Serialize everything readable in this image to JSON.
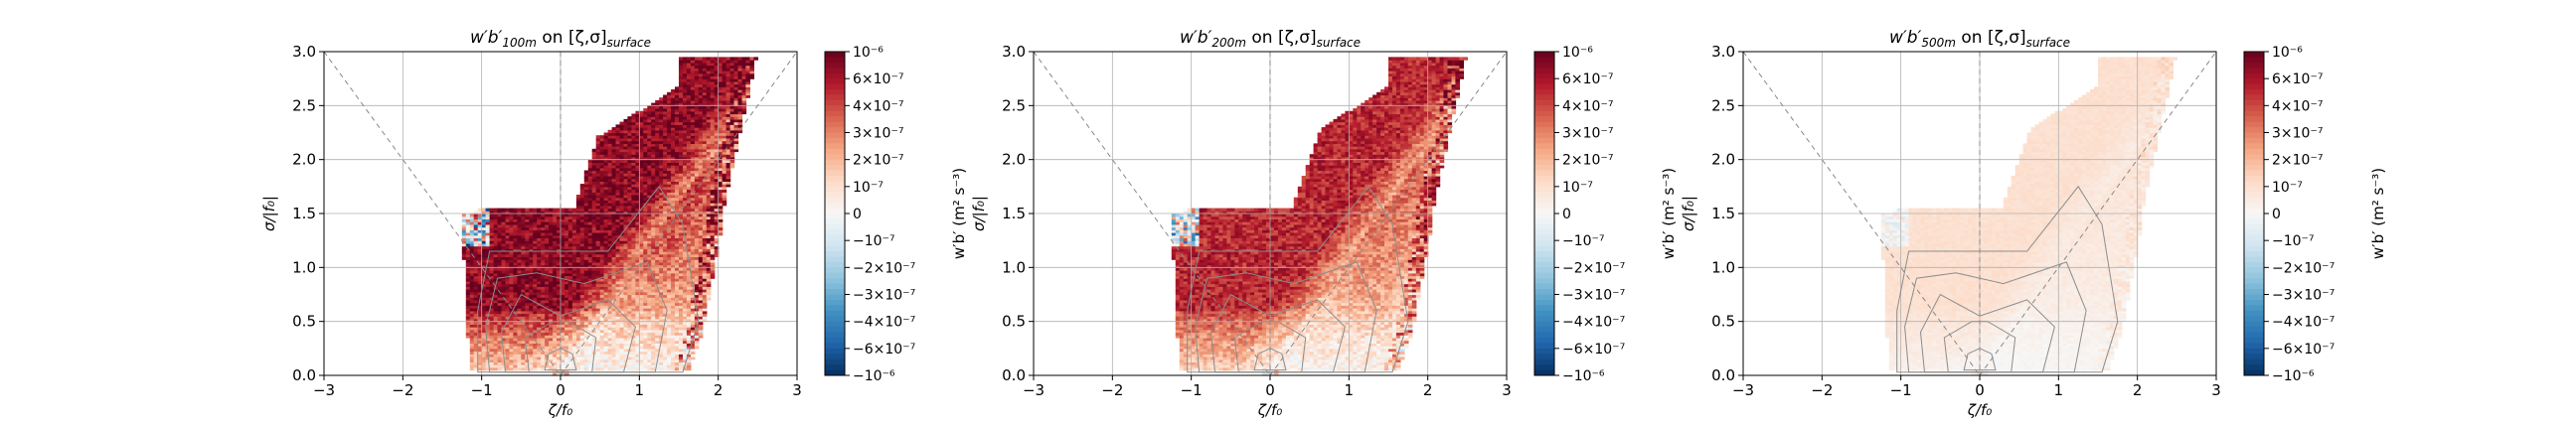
{
  "chart_data": [
    {
      "type": "heatmap",
      "title": "w'b'100m on [ζ,σ]surface",
      "title_parts": {
        "main": "w′b′",
        "sub": "100m",
        "mid": " on [ζ,σ]",
        "sub2": "surface"
      },
      "xlabel": "ζ/f₀",
      "ylabel": "σ/|f₀|",
      "xlim": [
        -3,
        3
      ],
      "ylim": [
        0,
        3
      ],
      "xticks": [
        "−3",
        "−2",
        "−1",
        "0",
        "1",
        "2",
        "3"
      ],
      "yticks": [
        "0.0",
        "0.5",
        "1.0",
        "1.5",
        "2.0",
        "2.5",
        "3.0"
      ],
      "colorbar_label": "w′b′ (m² s⁻³)",
      "colorbar_ticks": [
        "10⁻⁶",
        "6×10⁻⁷",
        "4×10⁻⁷",
        "3×10⁻⁷",
        "2×10⁻⁷",
        "10⁻⁷",
        "0",
        "−10⁻⁷",
        "−2×10⁻⁷",
        "−3×10⁻⁷",
        "−4×10⁻⁷",
        "−6×10⁻⁷",
        "−10⁻⁶"
      ],
      "colormap": "RdBu_r",
      "clim": [
        -1e-06,
        1e-06
      ],
      "amplitude": 1.0,
      "grid": true
    },
    {
      "type": "heatmap",
      "title": "w'b'200m on [ζ,σ]surface",
      "title_parts": {
        "main": "w′b′",
        "sub": "200m",
        "mid": " on [ζ,σ]",
        "sub2": "surface"
      },
      "xlabel": "ζ/f₀",
      "ylabel": "σ/|f₀|",
      "xlim": [
        -3,
        3
      ],
      "ylim": [
        0,
        3
      ],
      "xticks": [
        "−3",
        "−2",
        "−1",
        "0",
        "1",
        "2",
        "3"
      ],
      "yticks": [
        "0.0",
        "0.5",
        "1.0",
        "1.5",
        "2.0",
        "2.5",
        "3.0"
      ],
      "colorbar_label": "w′b′ (m² s⁻³)",
      "colorbar_ticks": [
        "10⁻⁶",
        "6×10⁻⁷",
        "4×10⁻⁷",
        "3×10⁻⁷",
        "2×10⁻⁷",
        "10⁻⁷",
        "0",
        "−10⁻⁷",
        "−2×10⁻⁷",
        "−3×10⁻⁷",
        "−4×10⁻⁷",
        "−6×10⁻⁷",
        "−10⁻⁶"
      ],
      "colormap": "RdBu_r",
      "clim": [
        -1e-06,
        1e-06
      ],
      "amplitude": 0.85,
      "grid": true
    },
    {
      "type": "heatmap",
      "title": "w'b'500m on [ζ,σ]surface",
      "title_parts": {
        "main": "w′b′",
        "sub": "500m",
        "mid": " on [ζ,σ]",
        "sub2": "surface"
      },
      "xlabel": "ζ/f₀",
      "ylabel": "σ/|f₀|",
      "xlim": [
        -3,
        3
      ],
      "ylim": [
        0,
        3
      ],
      "xticks": [
        "−3",
        "−2",
        "−1",
        "0",
        "1",
        "2",
        "3"
      ],
      "yticks": [
        "0.0",
        "0.5",
        "1.0",
        "1.5",
        "2.0",
        "2.5",
        "3.0"
      ],
      "colorbar_label": "w′b′ (m² s⁻³)",
      "colorbar_ticks": [
        "10⁻⁶",
        "6×10⁻⁷",
        "4×10⁻⁷",
        "3×10⁻⁷",
        "2×10⁻⁷",
        "10⁻⁷",
        "0",
        "−10⁻⁷",
        "−2×10⁻⁷",
        "−3×10⁻⁷",
        "−4×10⁻⁷",
        "−6×10⁻⁷",
        "−10⁻⁶"
      ],
      "colormap": "RdBu_r",
      "clim": [
        -1e-06,
        1e-06
      ],
      "amplitude": 0.18,
      "grid": true
    }
  ],
  "colors": {
    "positive_max": "#67001f",
    "positive_mid": "#d6604d",
    "neutral": "#f7f7f7",
    "negative_mid": "#4393c3",
    "negative_max": "#053061",
    "grid": "#b0b0b0",
    "reference_lines": "#888888",
    "contours": "#8c8c8c"
  }
}
